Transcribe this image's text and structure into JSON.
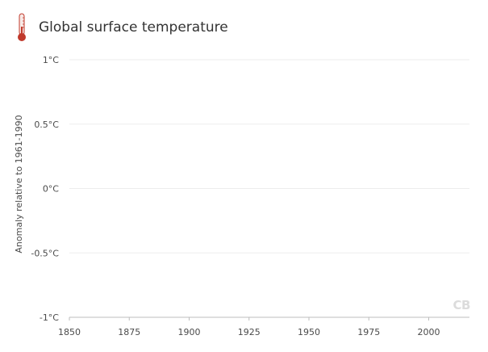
{
  "header": {
    "title": "Global surface temperature",
    "icon": "thermometer-icon",
    "icon_color": "#c0392b"
  },
  "watermark": "CB",
  "chart_data": {
    "type": "line",
    "title": "Global surface temperature",
    "xlabel": "",
    "ylabel": "Anomaly relative to 1961-1990",
    "x_ticks": [
      "1850",
      "1875",
      "1900",
      "1925",
      "1950",
      "1975",
      "2000"
    ],
    "x_tick_values": [
      1850,
      1875,
      1900,
      1925,
      1950,
      1975,
      2000
    ],
    "y_ticks": [
      "1°C",
      "0.5°C",
      "0°C",
      "-0.5°C",
      "-1°C"
    ],
    "y_tick_values": [
      1,
      0.5,
      0,
      -0.5,
      -1
    ],
    "xlim": [
      1850,
      2017
    ],
    "ylim": [
      -1,
      1
    ],
    "grid": true,
    "series": []
  }
}
